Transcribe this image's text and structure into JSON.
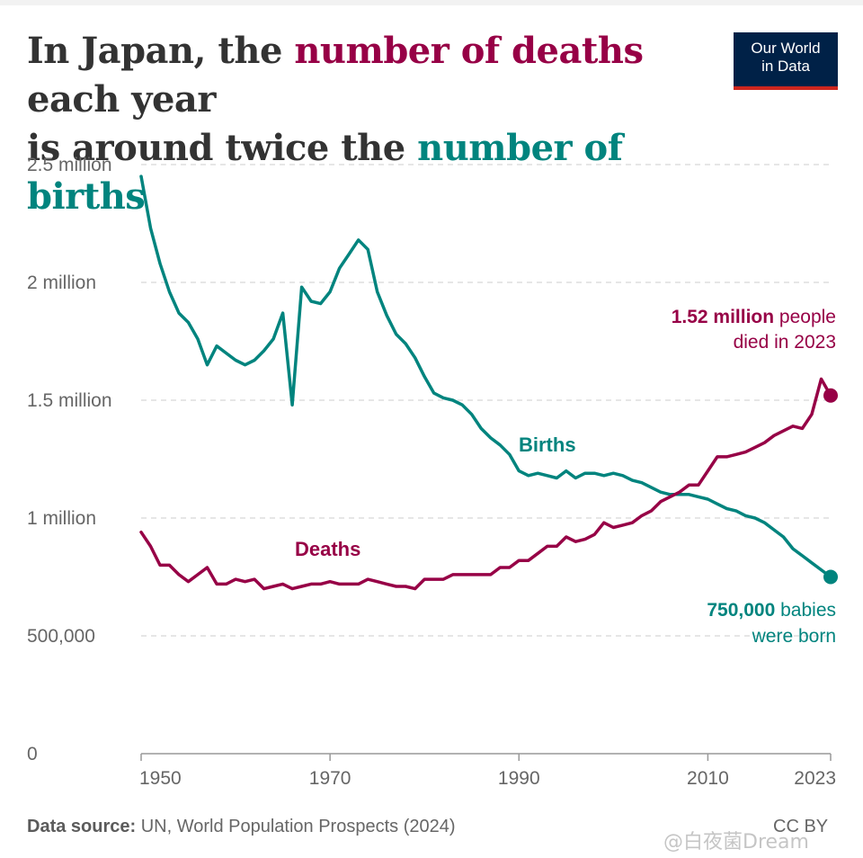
{
  "header": {
    "title_part1": "In Japan, the ",
    "title_deaths": "number of deaths",
    "title_part2": " each year",
    "title_part3": "is around twice the ",
    "title_births": "number of births"
  },
  "logo": {
    "line1": "Our World",
    "line2": "in Data"
  },
  "colors": {
    "deaths": "#970046",
    "births": "#00847e",
    "grid": "#dddddd",
    "text": "#333333"
  },
  "chart_data": {
    "type": "line",
    "title": "In Japan, the number of deaths each year is around twice the number of births",
    "xlabel": "",
    "ylabel": "",
    "xlim": [
      1950,
      2023
    ],
    "ylim": [
      0,
      2500000
    ],
    "x_ticks": [
      {
        "value": 1950,
        "label": "1950"
      },
      {
        "value": 1970,
        "label": "1970"
      },
      {
        "value": 1990,
        "label": "1990"
      },
      {
        "value": 2010,
        "label": "2010"
      },
      {
        "value": 2023,
        "label": "2023"
      }
    ],
    "y_ticks": [
      {
        "value": 0,
        "label": "0"
      },
      {
        "value": 500000,
        "label": "500,000"
      },
      {
        "value": 1000000,
        "label": "1 million"
      },
      {
        "value": 1500000,
        "label": "1.5 million"
      },
      {
        "value": 2000000,
        "label": "2 million"
      },
      {
        "value": 2500000,
        "label": "2.5 million"
      }
    ],
    "x": [
      1950,
      1951,
      1952,
      1953,
      1954,
      1955,
      1956,
      1957,
      1958,
      1959,
      1960,
      1961,
      1962,
      1963,
      1964,
      1965,
      1966,
      1967,
      1968,
      1969,
      1970,
      1971,
      1972,
      1973,
      1974,
      1975,
      1976,
      1977,
      1978,
      1979,
      1980,
      1981,
      1982,
      1983,
      1984,
      1985,
      1986,
      1987,
      1988,
      1989,
      1990,
      1991,
      1992,
      1993,
      1994,
      1995,
      1996,
      1997,
      1998,
      1999,
      2000,
      2001,
      2002,
      2003,
      2004,
      2005,
      2006,
      2007,
      2008,
      2009,
      2010,
      2011,
      2012,
      2013,
      2014,
      2015,
      2016,
      2017,
      2018,
      2019,
      2020,
      2021,
      2022,
      2023
    ],
    "series": [
      {
        "name": "Births",
        "label": "Births",
        "color": "#00847e",
        "values": [
          2450000,
          2230000,
          2080000,
          1960000,
          1870000,
          1830000,
          1760000,
          1650000,
          1730000,
          1700000,
          1670000,
          1650000,
          1670000,
          1710000,
          1760000,
          1870000,
          1480000,
          1980000,
          1920000,
          1910000,
          1960000,
          2060000,
          2120000,
          2180000,
          2140000,
          1960000,
          1860000,
          1780000,
          1740000,
          1680000,
          1600000,
          1530000,
          1510000,
          1500000,
          1480000,
          1440000,
          1380000,
          1340000,
          1310000,
          1270000,
          1200000,
          1180000,
          1190000,
          1180000,
          1170000,
          1200000,
          1170000,
          1190000,
          1190000,
          1180000,
          1190000,
          1180000,
          1160000,
          1150000,
          1130000,
          1110000,
          1100000,
          1100000,
          1100000,
          1090000,
          1080000,
          1060000,
          1040000,
          1030000,
          1010000,
          1000000,
          980000,
          950000,
          920000,
          870000,
          840000,
          810000,
          780000,
          750000
        ]
      },
      {
        "name": "Deaths",
        "label": "Deaths",
        "color": "#970046",
        "values": [
          940000,
          880000,
          800000,
          800000,
          760000,
          730000,
          760000,
          790000,
          720000,
          720000,
          740000,
          730000,
          740000,
          700000,
          710000,
          720000,
          700000,
          710000,
          720000,
          720000,
          730000,
          720000,
          720000,
          720000,
          740000,
          730000,
          720000,
          710000,
          710000,
          700000,
          740000,
          740000,
          740000,
          760000,
          760000,
          760000,
          760000,
          760000,
          790000,
          790000,
          820000,
          820000,
          850000,
          880000,
          880000,
          920000,
          900000,
          910000,
          930000,
          980000,
          960000,
          970000,
          980000,
          1010000,
          1030000,
          1070000,
          1090000,
          1110000,
          1140000,
          1140000,
          1200000,
          1260000,
          1260000,
          1270000,
          1280000,
          1300000,
          1320000,
          1350000,
          1370000,
          1390000,
          1380000,
          1440000,
          1590000,
          1520000
        ]
      }
    ],
    "annotations": {
      "deaths_bold": "1.52 million",
      "deaths_rest1": " people",
      "deaths_rest2": "died in 2023",
      "births_bold": "750,000",
      "births_rest1": " babies",
      "births_rest2": "were born"
    }
  },
  "footer": {
    "source_label": "Data source:",
    "source_text": " UN, World Population Prospects (2024)",
    "license": "CC BY",
    "watermark": "@白夜菌Dream"
  }
}
